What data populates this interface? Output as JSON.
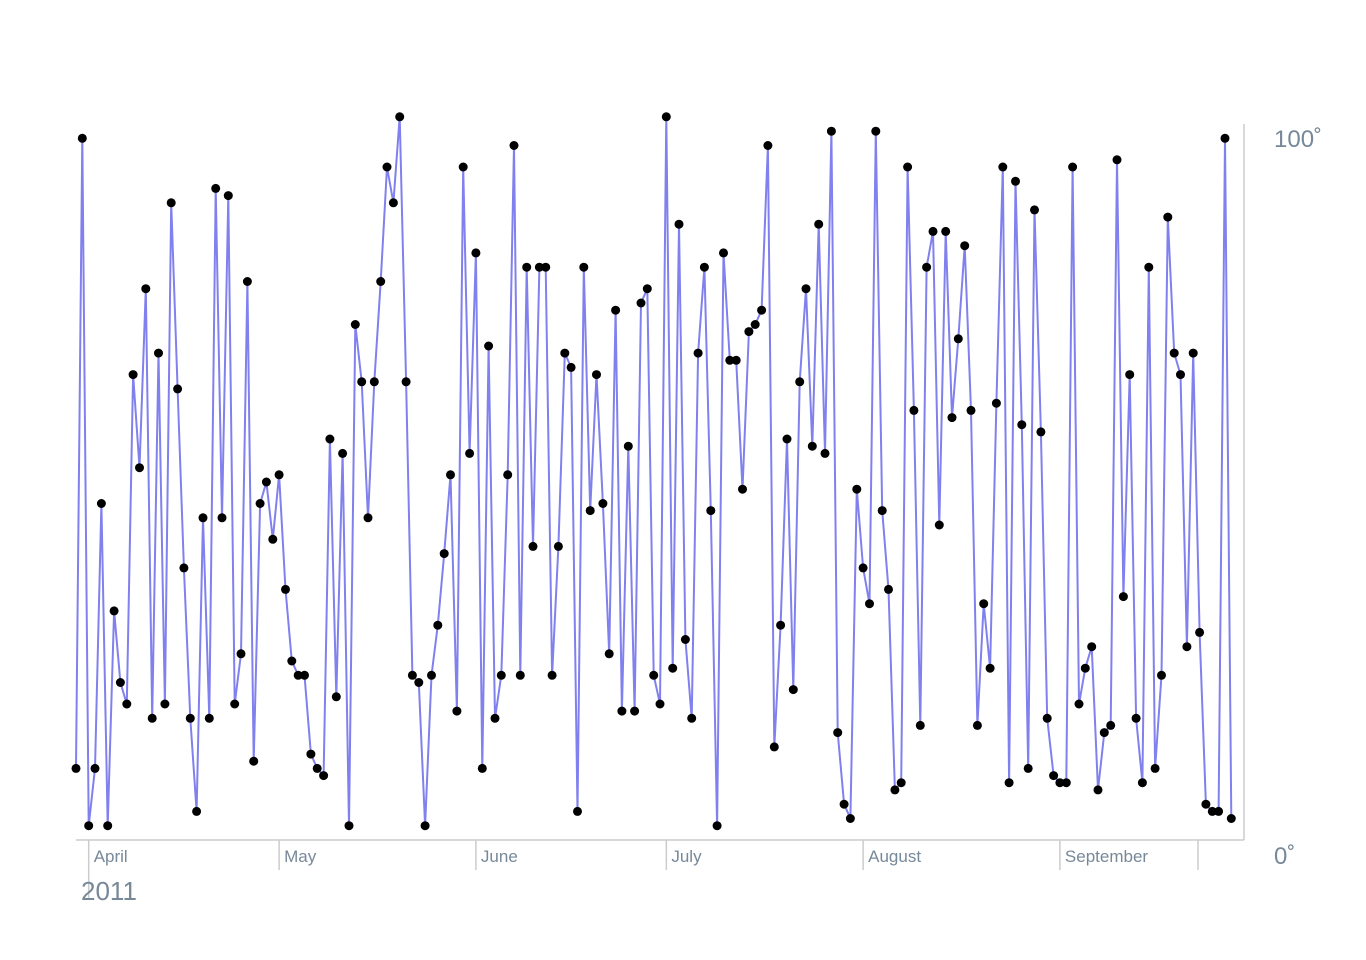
{
  "chart_data": {
    "type": "line",
    "x_start": "2011-03-30",
    "x_end": "2011-09-30",
    "x_unit": "day",
    "values": [
      10,
      98,
      2,
      10,
      47,
      2,
      32,
      22,
      19,
      65,
      52,
      77,
      17,
      68,
      19,
      89,
      63,
      38,
      17,
      4,
      45,
      17,
      91,
      45,
      90,
      19,
      26,
      78,
      11,
      47,
      50,
      42,
      51,
      35,
      25,
      23,
      23,
      12,
      10,
      9,
      56,
      20,
      54,
      2,
      72,
      64,
      45,
      64,
      78,
      94,
      89,
      101,
      64,
      23,
      22,
      2,
      23,
      30,
      40,
      51,
      18,
      94,
      54,
      82,
      10,
      69,
      17,
      23,
      51,
      97,
      23,
      80,
      41,
      80,
      80,
      23,
      41,
      68,
      66,
      4,
      80,
      46,
      65,
      47,
      26,
      74,
      18,
      55,
      18,
      75,
      77,
      23,
      19,
      101,
      24,
      86,
      28,
      17,
      68,
      80,
      46,
      2,
      82,
      67,
      67,
      49,
      71,
      72,
      74,
      97,
      13,
      30,
      56,
      21,
      64,
      77,
      55,
      86,
      54,
      99,
      15,
      5,
      3,
      49,
      38,
      33,
      99,
      46,
      35,
      7,
      8,
      94,
      60,
      16,
      80,
      85,
      44,
      85,
      59,
      70,
      83,
      60,
      16,
      33,
      24,
      61,
      94,
      8,
      92,
      58,
      10,
      88,
      57,
      17,
      9,
      8,
      8,
      94,
      19,
      24,
      27,
      7,
      15,
      16,
      95,
      34,
      65,
      17,
      8,
      80,
      10,
      23,
      87,
      68,
      65,
      27,
      68,
      29,
      5,
      4,
      4,
      98,
      3
    ],
    "x_ticks": [
      {
        "label": "April",
        "date": "2011-04-01"
      },
      {
        "label": "May",
        "date": "2011-05-01"
      },
      {
        "label": "June",
        "date": "2011-06-01"
      },
      {
        "label": "July",
        "date": "2011-07-01"
      },
      {
        "label": "August",
        "date": "2011-08-01"
      },
      {
        "label": "September",
        "date": "2011-09-01"
      },
      {
        "label": "",
        "date": "2011-10-01"
      }
    ],
    "year_label": "2011",
    "y_max_label": "100˚",
    "y_min_label": "0˚",
    "ylim": [
      0,
      100
    ],
    "grid": false,
    "colors": {
      "line": "#8080ee",
      "point": "#000000",
      "axis_text": "#778899",
      "axis_line": "#cccccc"
    }
  }
}
